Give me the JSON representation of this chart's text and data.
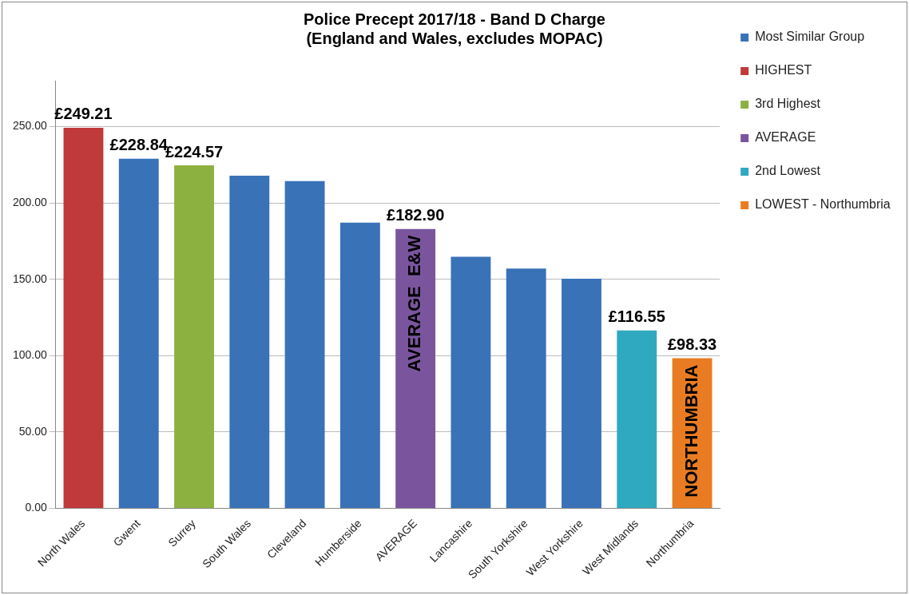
{
  "chart_data": {
    "type": "bar",
    "title": [
      "Police Precept 2017/18 - Band D Charge",
      "(England and Wales, excludes MOPAC)"
    ],
    "categories": [
      "North Wales",
      "Gwent",
      "Surrey",
      "South Wales",
      "Cleveland",
      "Humberside",
      "AVERAGE",
      "Lancashire",
      "South Yorkshire",
      "West Yorkshire",
      "West Midlands",
      "Northumbria"
    ],
    "series": [
      {
        "name": "Most Similar Group",
        "color": "#3a72b8",
        "values": [
          null,
          228.84,
          null,
          217.8,
          214.3,
          187.1,
          null,
          164.7,
          157.0,
          150.4,
          null,
          null
        ],
        "value_labels": [
          null,
          "£228.84",
          null,
          null,
          null,
          null,
          null,
          null,
          null,
          null,
          null,
          null
        ]
      },
      {
        "name": "HIGHEST",
        "color": "#c0393b",
        "values": [
          249.21,
          null,
          null,
          null,
          null,
          null,
          null,
          null,
          null,
          null,
          null,
          null
        ],
        "value_labels": [
          "£249.21",
          null,
          null,
          null,
          null,
          null,
          null,
          null,
          null,
          null,
          null,
          null
        ]
      },
      {
        "name": "3rd Highest",
        "color": "#8db140",
        "values": [
          null,
          null,
          224.57,
          null,
          null,
          null,
          null,
          null,
          null,
          null,
          null,
          null
        ],
        "value_labels": [
          null,
          null,
          "£224.57",
          null,
          null,
          null,
          null,
          null,
          null,
          null,
          null,
          null
        ]
      },
      {
        "name": "AVERAGE",
        "color": "#7a559e",
        "values": [
          null,
          null,
          null,
          null,
          null,
          null,
          182.9,
          null,
          null,
          null,
          null,
          null
        ],
        "value_labels": [
          null,
          null,
          null,
          null,
          null,
          null,
          "£182.90",
          null,
          null,
          null,
          null,
          null
        ]
      },
      {
        "name": "2nd Lowest",
        "color": "#2fa9c0",
        "values": [
          null,
          null,
          null,
          null,
          null,
          null,
          null,
          null,
          null,
          null,
          116.55,
          null
        ],
        "value_labels": [
          null,
          null,
          null,
          null,
          null,
          null,
          null,
          null,
          null,
          null,
          "£116.55",
          null
        ]
      },
      {
        "name": "LOWEST - Northumbria",
        "color": "#e97c22",
        "values": [
          null,
          null,
          null,
          null,
          null,
          null,
          null,
          null,
          null,
          null,
          null,
          98.33
        ],
        "value_labels": [
          null,
          null,
          null,
          null,
          null,
          null,
          null,
          null,
          null,
          null,
          null,
          "£98.33"
        ]
      }
    ],
    "annotations": [
      {
        "text": "AVERAGE  E&W",
        "x": "AVERAGE",
        "y": 182.9
      },
      {
        "text": "NORTHUMBRIA",
        "x": "Northumbria",
        "y": 98.33
      }
    ],
    "ylim": [
      0,
      280
    ],
    "yticks": [
      {
        "value": 0,
        "label": "0.00"
      },
      {
        "value": 50,
        "label": "50.00"
      },
      {
        "value": 100,
        "label": "100.00"
      },
      {
        "value": 150,
        "label": "150.00"
      },
      {
        "value": 200,
        "label": "200.00"
      },
      {
        "value": 250,
        "label": "250.00"
      }
    ],
    "grid": "y",
    "legend": "right"
  }
}
